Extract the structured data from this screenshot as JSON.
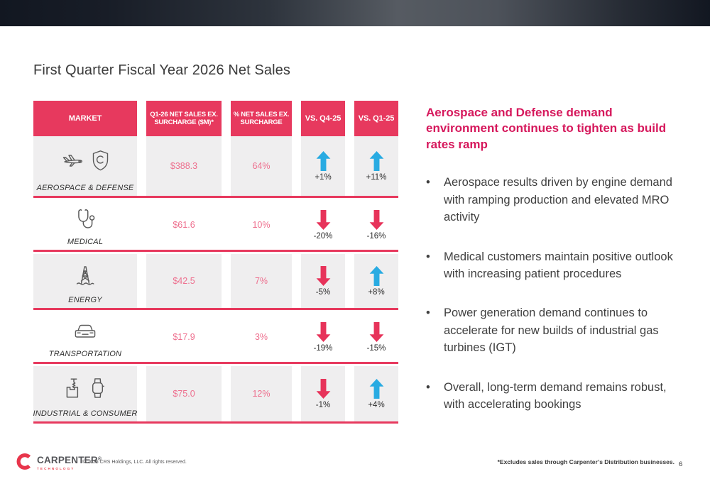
{
  "slide": {
    "title": "First Quarter Fiscal Year 2026 Net Sales",
    "page_number": "6",
    "footnote": "*Excludes sales through Carpenter’s Distribution businesses.",
    "copyright": "© 2025 CRS Holdings, LLC. All rights reserved.",
    "logo": {
      "word": "CARPENTER",
      "reg": "®",
      "sub": "TECHNOLOGY"
    }
  },
  "colors": {
    "brand_pink": "#E7395E",
    "heading_crimson": "#D6185C",
    "value_pink": "#EE6F8E",
    "arrow_up_blue": "#29ABE2",
    "arrow_down_pink": "#E7335A",
    "row_gray": "#EFEEEF",
    "dark_text": "#3f3f3f"
  },
  "table": {
    "headers": [
      "MARKET",
      "Q1-26 NET SALES EX. SURCHARGE ($M)*",
      "% NET SALES EX. SURCHARGE",
      "VS. Q4-25",
      "VS. Q1-25"
    ],
    "rows": [
      {
        "market": "AEROSPACE & DEFENSE",
        "icons": [
          "airplane-icon",
          "shield-icon"
        ],
        "sales": "$388.3",
        "pct": "64%",
        "vs_q4": {
          "dir": "up",
          "value": "+1%"
        },
        "vs_q1": {
          "dir": "up",
          "value": "+11%"
        }
      },
      {
        "market": "MEDICAL",
        "icons": [
          "stethoscope-icon"
        ],
        "sales": "$61.6",
        "pct": "10%",
        "vs_q4": {
          "dir": "down",
          "value": "-20%"
        },
        "vs_q1": {
          "dir": "down",
          "value": "-16%"
        }
      },
      {
        "market": "ENERGY",
        "icons": [
          "oil-derrick-icon"
        ],
        "sales": "$42.5",
        "pct": "7%",
        "vs_q4": {
          "dir": "down",
          "value": "-5%"
        },
        "vs_q1": {
          "dir": "up",
          "value": "+8%"
        }
      },
      {
        "market": "TRANSPORTATION",
        "icons": [
          "car-icon"
        ],
        "sales": "$17.9",
        "pct": "3%",
        "vs_q4": {
          "dir": "down",
          "value": "-19%"
        },
        "vs_q1": {
          "dir": "down",
          "value": "-15%"
        }
      },
      {
        "market": "INDUSTRIAL & CONSUMER",
        "icons": [
          "machining-icon",
          "smartwatch-icon"
        ],
        "sales": "$75.0",
        "pct": "12%",
        "vs_q4": {
          "dir": "down",
          "value": "-1%"
        },
        "vs_q1": {
          "dir": "up",
          "value": "+4%"
        }
      }
    ]
  },
  "commentary": {
    "heading": "Aerospace and Defense demand environment continues to tighten as build rates ramp",
    "bullet_char": "•",
    "bullets": [
      "Aerospace results driven by engine demand with ramping production and elevated MRO activity",
      "Medical customers maintain positive outlook with increasing patient procedures",
      "Power generation demand continues to accelerate for new builds of industrial gas turbines (IGT)",
      "Overall, long-term demand remains robust, with accelerating bookings"
    ]
  },
  "chart_data": {
    "type": "table",
    "title": "First Quarter Fiscal Year 2026 Net Sales",
    "columns": [
      "MARKET",
      "Q1-26 NET SALES EX. SURCHARGE ($M)*",
      "% NET SALES EX. SURCHARGE",
      "VS. Q4-25",
      "VS. Q1-25"
    ],
    "rows": [
      [
        "AEROSPACE & DEFENSE",
        388.3,
        "64%",
        "+1%",
        "+11%"
      ],
      [
        "MEDICAL",
        61.6,
        "10%",
        "-20%",
        "-16%"
      ],
      [
        "ENERGY",
        42.5,
        "7%",
        "-5%",
        "+8%"
      ],
      [
        "TRANSPORTATION",
        17.9,
        "3%",
        "-19%",
        "-15%"
      ],
      [
        "INDUSTRIAL & CONSUMER",
        75.0,
        "12%",
        "-1%",
        "+4%"
      ]
    ]
  }
}
